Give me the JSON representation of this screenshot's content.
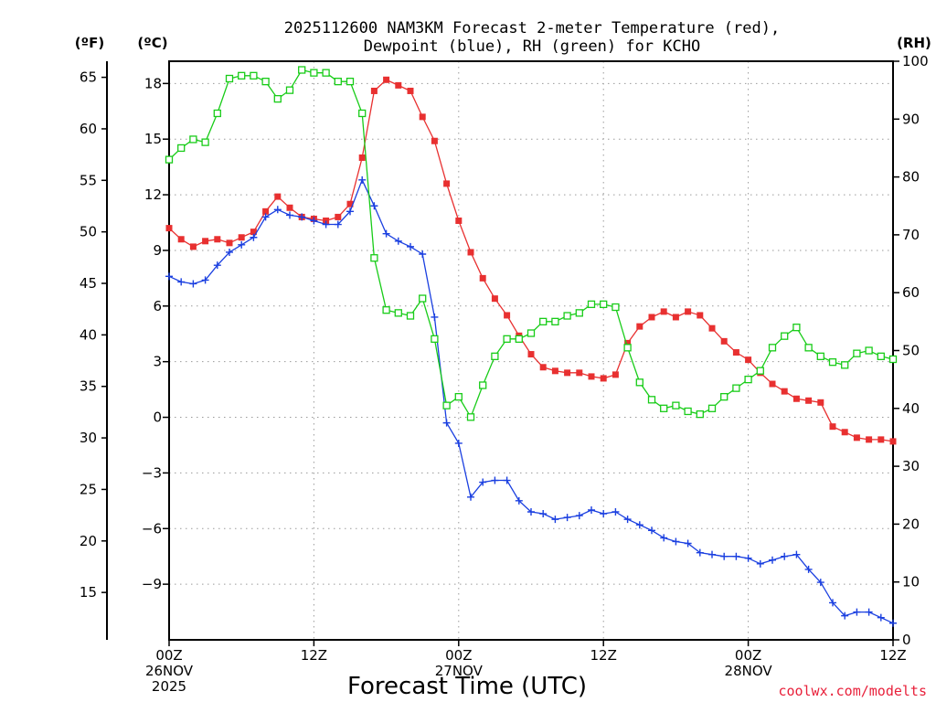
{
  "chart_data": {
    "type": "line",
    "title_line1": "2025112600 NAM3KM Forecast 2-meter Temperature (red),",
    "title_line2": "Dewpoint (blue), RH (green) for KCHO",
    "xlabel": "Forecast Time (UTC)",
    "credit": "coolwx.com/modelts",
    "unit_f": "(ºF)",
    "unit_c": "(ºC)",
    "unit_rh": "(RH)",
    "x_range_hours": [
      0,
      60
    ],
    "x_ticks": [
      {
        "hour": 0,
        "lines": [
          "00Z",
          "26NOV",
          "2025"
        ]
      },
      {
        "hour": 12,
        "lines": [
          "12Z"
        ]
      },
      {
        "hour": 24,
        "lines": [
          "00Z",
          "27NOV"
        ]
      },
      {
        "hour": 36,
        "lines": [
          "12Z"
        ]
      },
      {
        "hour": 48,
        "lines": [
          "00Z",
          "28NOV"
        ]
      },
      {
        "hour": 60,
        "lines": [
          "12Z"
        ]
      }
    ],
    "celsius_axis": {
      "range": [
        -12,
        19.2
      ],
      "ticks": [
        "18",
        "15",
        "12",
        "9",
        "6",
        "3",
        "0",
        "−3",
        "−6",
        "−9"
      ],
      "tick_values": [
        18,
        15,
        12,
        9,
        6,
        3,
        0,
        -3,
        -6,
        -9
      ]
    },
    "fahrenheit_axis": {
      "ticks": [
        "65",
        "60",
        "55",
        "50",
        "45",
        "40",
        "35",
        "30",
        "25",
        "20",
        "15"
      ],
      "tick_values": [
        65,
        60,
        55,
        50,
        45,
        40,
        35,
        30,
        25,
        20,
        15
      ]
    },
    "rh_axis": {
      "range": [
        0,
        100
      ],
      "ticks": [
        "100",
        "90",
        "80",
        "70",
        "60",
        "50",
        "40",
        "30",
        "20",
        "10",
        "0"
      ],
      "tick_values": [
        100,
        90,
        80,
        70,
        60,
        50,
        40,
        30,
        20,
        10,
        0
      ]
    },
    "hours": [
      0,
      1,
      2,
      3,
      4,
      5,
      6,
      7,
      8,
      9,
      10,
      11,
      12,
      13,
      14,
      15,
      16,
      17,
      18,
      19,
      20,
      21,
      22,
      23,
      24,
      25,
      26,
      27,
      28,
      29,
      30,
      31,
      32,
      33,
      34,
      35,
      36,
      37,
      38,
      39,
      40,
      41,
      42,
      43,
      44,
      45,
      46,
      47,
      48,
      49,
      50,
      51,
      52,
      53,
      54,
      55,
      56,
      57,
      58,
      59,
      60
    ],
    "series": [
      {
        "name": "2-meter Temperature",
        "unit": "°C",
        "color": "#e83030",
        "marker": "filled-square",
        "values": [
          10.2,
          9.6,
          9.2,
          9.5,
          9.6,
          9.4,
          9.7,
          10.0,
          11.1,
          11.9,
          11.3,
          10.8,
          10.7,
          10.6,
          10.8,
          11.5,
          14.0,
          17.6,
          18.2,
          17.9,
          17.6,
          16.2,
          14.9,
          12.6,
          10.6,
          8.9,
          7.5,
          6.4,
          5.5,
          4.4,
          3.4,
          2.7,
          2.5,
          2.4,
          2.4,
          2.2,
          2.1,
          2.3,
          4.0,
          4.9,
          5.4,
          5.7,
          5.4,
          5.7,
          5.5,
          4.8,
          4.1,
          3.5,
          3.1,
          2.4,
          1.8,
          1.4,
          1.0,
          0.9,
          0.8,
          -0.5,
          -0.8,
          -1.1,
          -1.2,
          -1.2,
          -1.3
        ]
      },
      {
        "name": "Dewpoint",
        "unit": "°C",
        "color": "#1a3fe0",
        "marker": "plus",
        "values": [
          7.6,
          7.3,
          7.2,
          7.4,
          8.2,
          8.9,
          9.3,
          9.7,
          10.8,
          11.2,
          10.9,
          10.8,
          10.6,
          10.4,
          10.4,
          11.1,
          12.8,
          11.4,
          9.9,
          9.5,
          9.2,
          8.8,
          5.4,
          -0.3,
          -1.4,
          -4.3,
          -3.5,
          -3.4,
          -3.4,
          -4.5,
          -5.1,
          -5.2,
          -5.5,
          -5.4,
          -5.3,
          -5.0,
          -5.2,
          -5.1,
          -5.5,
          -5.8,
          -6.1,
          -6.5,
          -6.7,
          -6.8,
          -7.3,
          -7.4,
          -7.5,
          -7.5,
          -7.6,
          -7.9,
          -7.7,
          -7.5,
          -7.4,
          -8.2,
          -8.9,
          -10.0,
          -10.7,
          -10.5,
          -10.5,
          -10.8,
          -11.1
        ]
      },
      {
        "name": "RH",
        "unit": "%",
        "color": "#18cc18",
        "marker": "open-square",
        "values": [
          83,
          85,
          86.5,
          86,
          91,
          97,
          97.5,
          97.5,
          96.5,
          93.5,
          95,
          98.5,
          98,
          98,
          96.5,
          96.5,
          91,
          66,
          57,
          56.5,
          56,
          59,
          52,
          40.5,
          42,
          38.5,
          44,
          49,
          52,
          52,
          53,
          55,
          55,
          56,
          56.5,
          58,
          58,
          57.5,
          50.5,
          44.5,
          41.5,
          40,
          40.5,
          39.5,
          39,
          40,
          42,
          43.5,
          45,
          46.5,
          50.5,
          52.5,
          54,
          50.5,
          49,
          48,
          47.5,
          49.5,
          50,
          49,
          48.5
        ]
      }
    ]
  }
}
